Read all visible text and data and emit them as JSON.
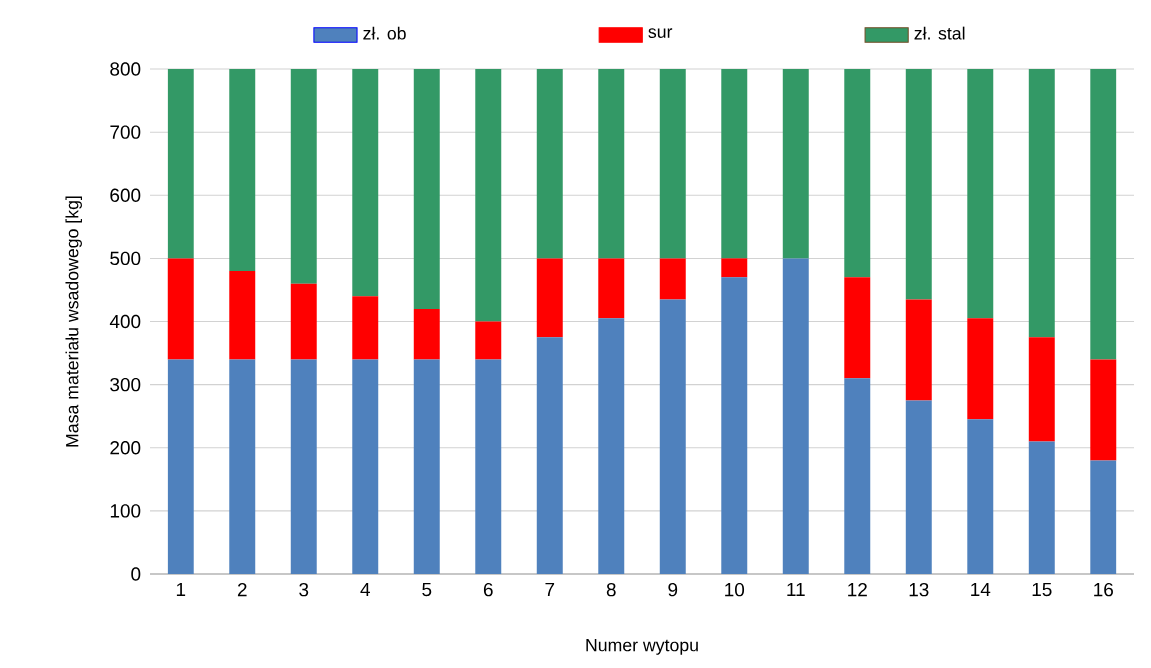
{
  "chart_data": {
    "type": "bar",
    "stacked": true,
    "xlabel": "Numer wytopu",
    "ylabel": "Masa materiału wsadowego [kg]",
    "categories": [
      "1",
      "2",
      "3",
      "4",
      "5",
      "6",
      "7",
      "8",
      "9",
      "10",
      "11",
      "12",
      "13",
      "14",
      "15",
      "16"
    ],
    "series": [
      {
        "name": "zł. ob",
        "color": "#4f81bd",
        "values": [
          340,
          340,
          340,
          340,
          340,
          340,
          375,
          405,
          435,
          470,
          500,
          310,
          275,
          245,
          210,
          180
        ]
      },
      {
        "name": "sur",
        "color": "#ff0000",
        "values": [
          160,
          140,
          120,
          100,
          80,
          60,
          125,
          95,
          65,
          30,
          0,
          160,
          160,
          160,
          165,
          160
        ]
      },
      {
        "name": "zł. stal",
        "color": "#339966",
        "values": [
          300,
          320,
          340,
          360,
          380,
          400,
          300,
          300,
          300,
          300,
          300,
          330,
          365,
          395,
          425,
          460
        ]
      }
    ],
    "ylim": [
      0,
      800
    ],
    "yticks": [
      0,
      100,
      200,
      300,
      400,
      500,
      600,
      700,
      800
    ],
    "grid": "y",
    "legend": "top"
  }
}
